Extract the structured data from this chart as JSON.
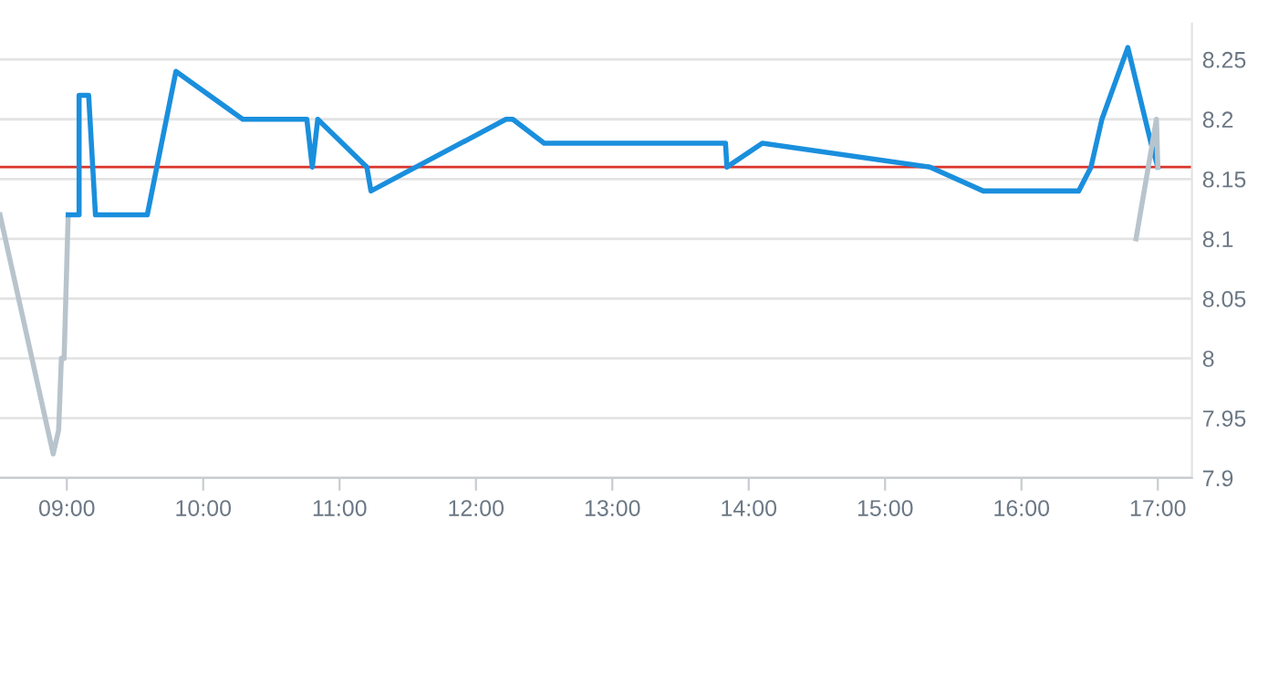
{
  "chart_data": {
    "type": "line",
    "series": [
      {
        "color": "#b8c4cc",
        "x": [
          8.51,
          8.9,
          8.94,
          8.96,
          8.98,
          9.01
        ],
        "values": [
          8.12,
          7.92,
          7.94,
          8.0,
          8.0,
          8.12
        ]
      },
      {
        "color": "#1a8fdd",
        "x": [
          9.01,
          9.09,
          9.09,
          9.16,
          9.21,
          9.59,
          9.8,
          10.29,
          10.76,
          10.8,
          10.84,
          11.2,
          11.23,
          12.22,
          12.27,
          12.5,
          13.83,
          13.84,
          14.1,
          15.33,
          15.72,
          16.42,
          16.51,
          16.59,
          16.78,
          16.95,
          17.0
        ],
        "values": [
          8.12,
          8.12,
          8.22,
          8.22,
          8.12,
          8.12,
          8.24,
          8.2,
          8.2,
          8.16,
          8.2,
          8.16,
          8.14,
          8.2,
          8.2,
          8.18,
          8.18,
          8.16,
          8.18,
          8.16,
          8.14,
          8.14,
          8.16,
          8.2,
          8.26,
          8.18,
          8.16
        ]
      },
      {
        "color": "#b8c4cc",
        "x": [
          16.84,
          16.99,
          17.0
        ],
        "values": [
          8.1,
          8.2,
          8.16
        ]
      }
    ],
    "ref_lines": [
      {
        "axis": "y",
        "value": 8.16,
        "color": "#d9342b"
      }
    ],
    "xlim": [
      8.51,
      17.25
    ],
    "ylim": [
      7.9,
      8.28
    ],
    "xticks": [
      {
        "value": 9,
        "label": "09:00"
      },
      {
        "value": 10,
        "label": "10:00"
      },
      {
        "value": 11,
        "label": "11:00"
      },
      {
        "value": 12,
        "label": "12:00"
      },
      {
        "value": 13,
        "label": "13:00"
      },
      {
        "value": 14,
        "label": "14:00"
      },
      {
        "value": 15,
        "label": "15:00"
      },
      {
        "value": 16,
        "label": "16:00"
      },
      {
        "value": 17,
        "label": "17:00"
      }
    ],
    "yticks": [
      7.9,
      7.95,
      8,
      8.05,
      8.1,
      8.15,
      8.2,
      8.25
    ],
    "grid": "y",
    "legend": false,
    "marker": "none",
    "line_style": "solid"
  }
}
